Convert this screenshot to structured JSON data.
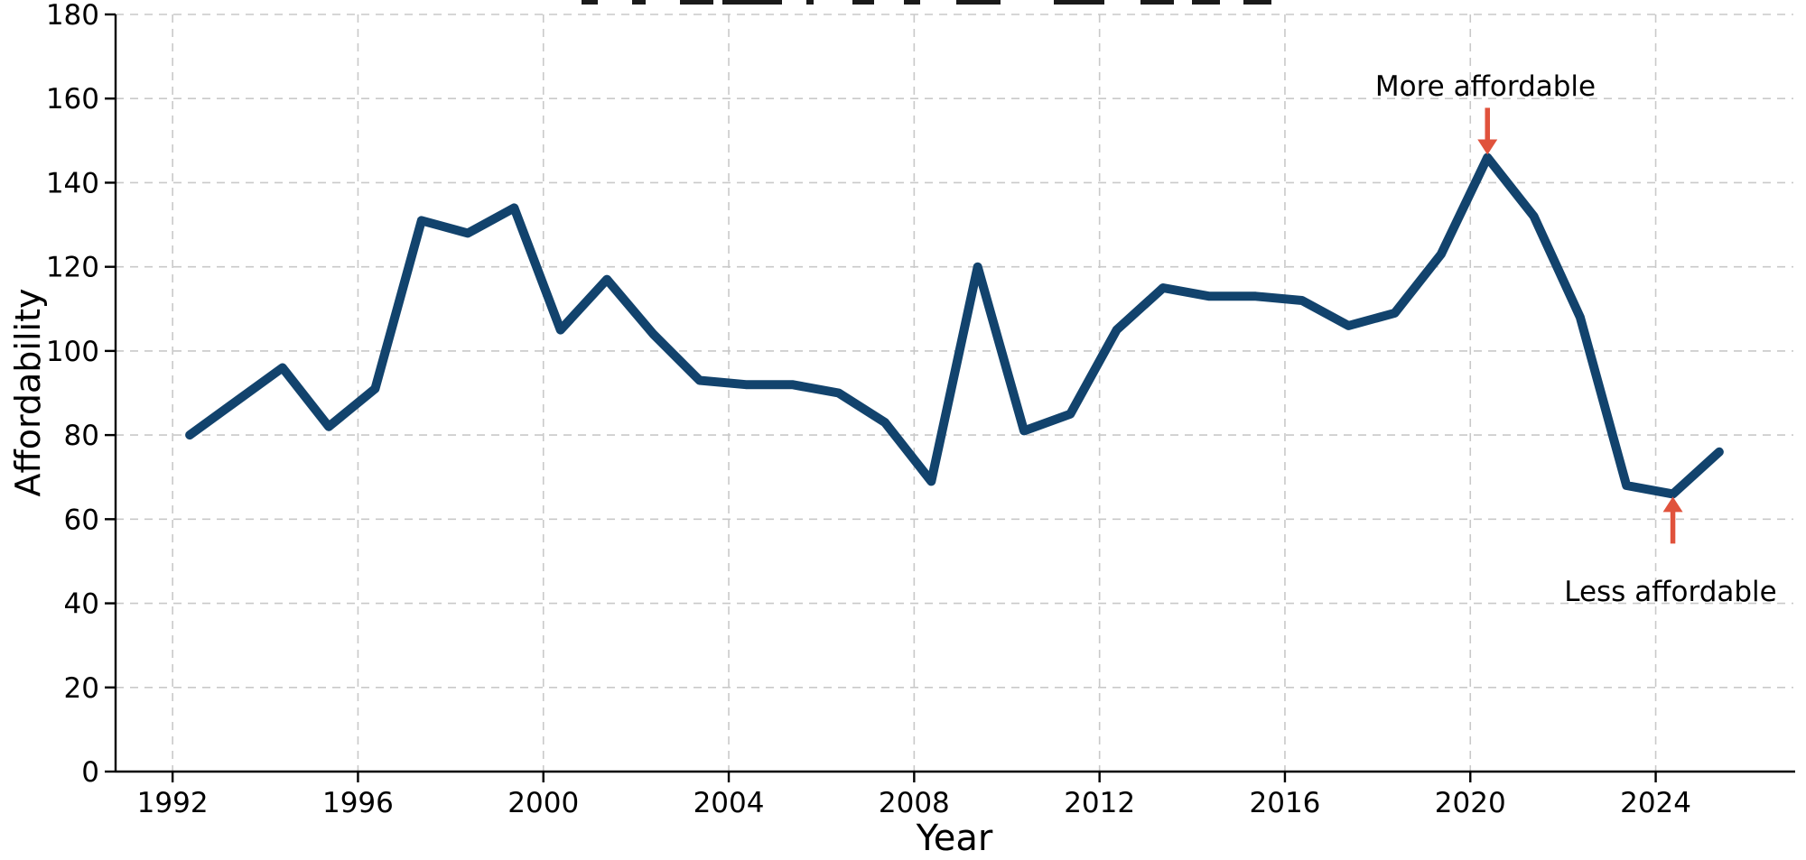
{
  "chart_data": {
    "type": "line",
    "title": "",
    "xlabel": "Year",
    "ylabel": "Affordability",
    "x": [
      1992,
      1993,
      1994,
      1995,
      1996,
      1997,
      1998,
      1999,
      2000,
      2001,
      2002,
      2003,
      2004,
      2005,
      2006,
      2007,
      2008,
      2009,
      2010,
      2011,
      2012,
      2013,
      2014,
      2015,
      2016,
      2017,
      2018,
      2019,
      2020,
      2021,
      2022,
      2023,
      2024,
      2025
    ],
    "values": [
      80,
      88,
      96,
      82,
      91,
      131,
      128,
      134,
      105,
      117,
      104,
      93,
      92,
      92,
      90,
      83,
      69,
      120,
      81,
      85,
      105,
      115,
      113,
      113,
      112,
      106,
      109,
      123,
      146,
      132,
      108,
      68,
      66,
      76
    ],
    "xticks": [
      1992,
      1996,
      2000,
      2004,
      2008,
      2012,
      2016,
      2020,
      2024
    ],
    "yticks": [
      0,
      20,
      40,
      60,
      80,
      100,
      120,
      140,
      160,
      180
    ],
    "xlim": [
      1990.77,
      2026.97
    ],
    "ylim": [
      0,
      180
    ],
    "grid": "both-dashed",
    "legend": "none",
    "line_color": "#12436d",
    "annotations": [
      {
        "text": "More affordable",
        "year": 2020,
        "value": 146,
        "arrow": "down",
        "color": "#e0523c"
      },
      {
        "text": "Less affordable",
        "year": 2024,
        "value": 66,
        "arrow": "up",
        "color": "#e0523c"
      }
    ]
  },
  "colors": {
    "line": "#12436d",
    "arrow": "#e0523c",
    "grid": "#c9c9c9",
    "axis": "#000000",
    "text": "#000000",
    "background": "#ffffff"
  }
}
